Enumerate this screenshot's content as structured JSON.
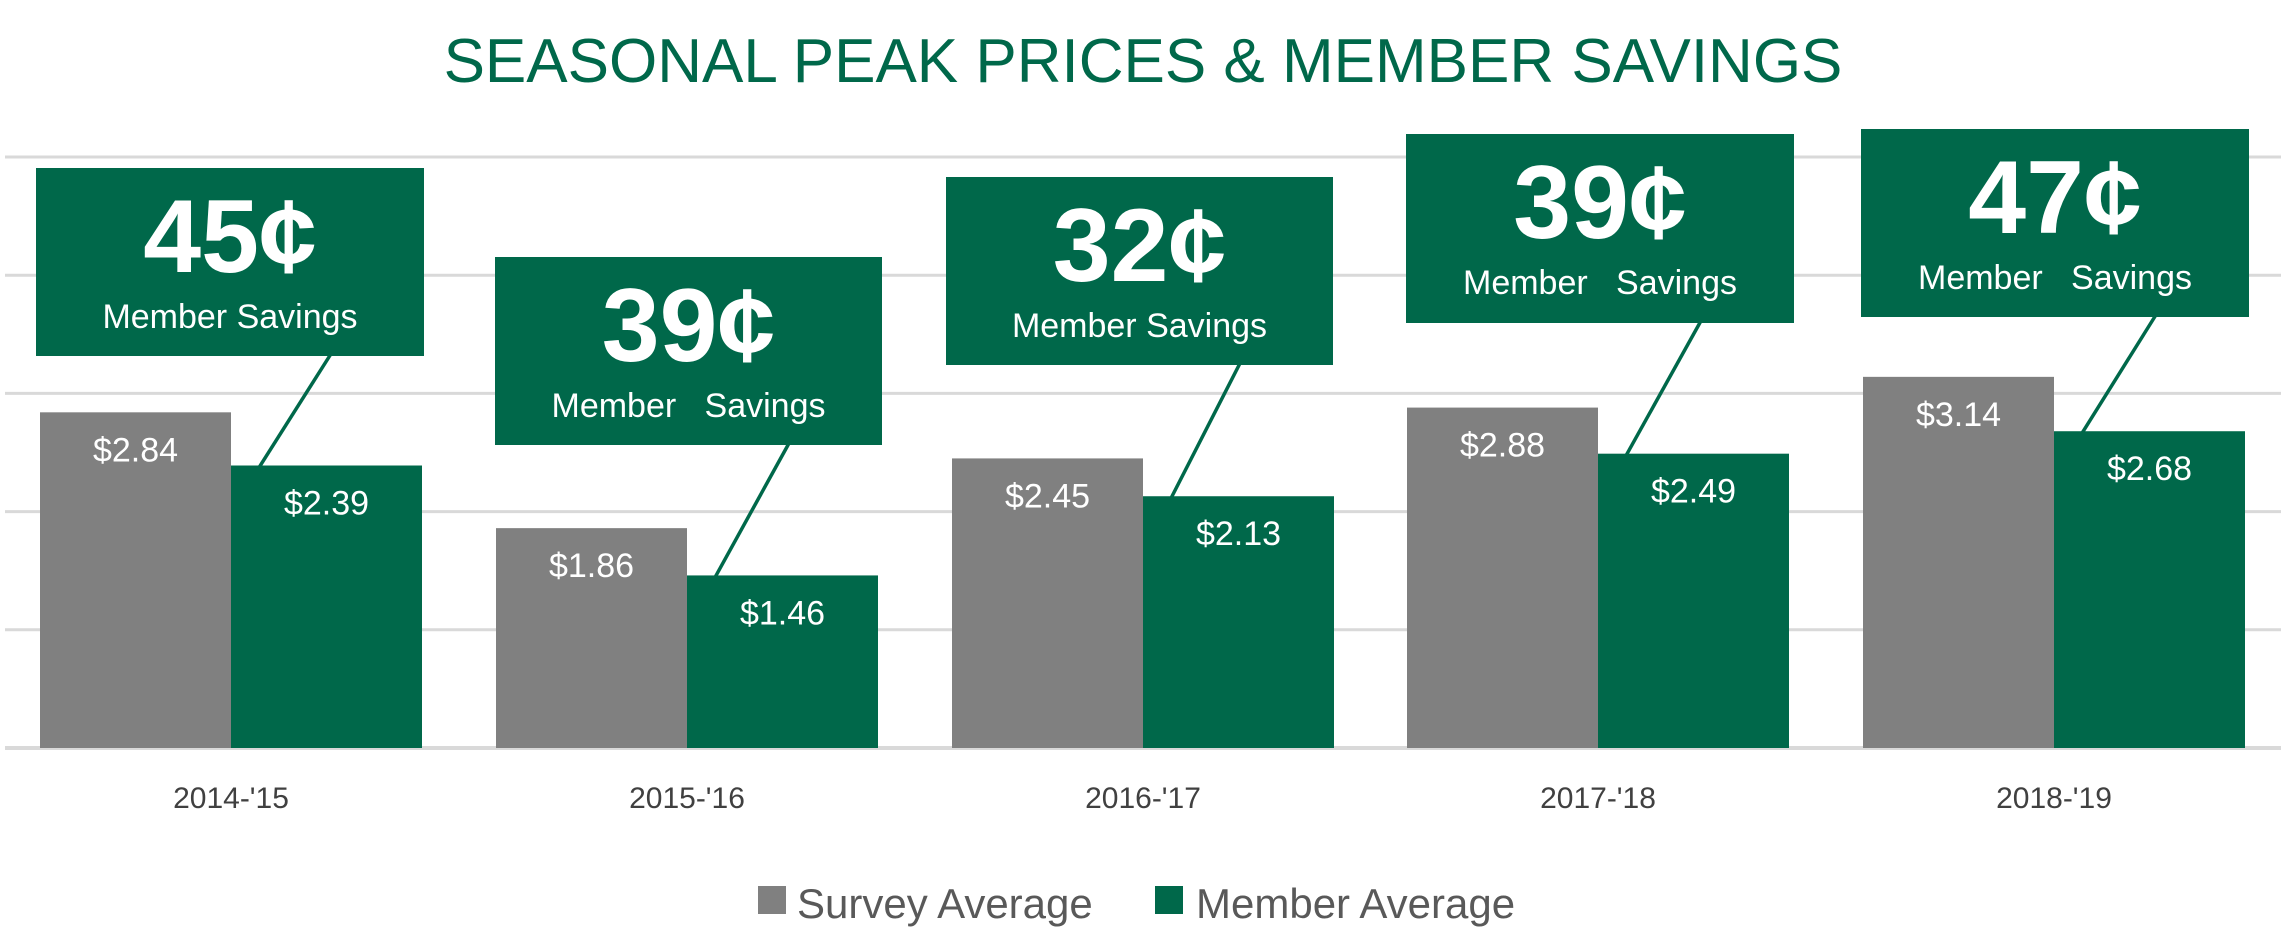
{
  "chart_data": {
    "type": "bar",
    "title": "SEASONAL PEAK PRICES & MEMBER SAVINGS",
    "categories": [
      "2014-'15",
      "2015-'16",
      "2016-'17",
      "2017-'18",
      "2018-'19"
    ],
    "series": [
      {
        "name": "Survey Average",
        "color": "#808080",
        "values": [
          2.84,
          1.86,
          2.45,
          2.88,
          3.14
        ],
        "labels": [
          "$2.84",
          "$1.86",
          "$2.45",
          "$2.88",
          "$3.14"
        ]
      },
      {
        "name": "Member Average",
        "color": "#00684a",
        "values": [
          2.39,
          1.46,
          2.13,
          2.49,
          2.68
        ],
        "labels": [
          "$2.39",
          "$1.46",
          "$2.13",
          "$2.49",
          "$2.68"
        ]
      }
    ],
    "callouts": [
      {
        "amount": "45¢",
        "text": "Member Savings"
      },
      {
        "amount": "39¢",
        "text": "Member   Savings"
      },
      {
        "amount": "32¢",
        "text": "Member Savings"
      },
      {
        "amount": "39¢",
        "text": "Member   Savings"
      },
      {
        "amount": "47¢",
        "text": "Member   Savings"
      }
    ],
    "ylim": [
      0,
      5
    ],
    "grid": true,
    "legend": "bottom",
    "colors": {
      "title": "#00684a",
      "survey": "#808080",
      "member": "#00684a",
      "grid": "#d9d9d9"
    }
  }
}
